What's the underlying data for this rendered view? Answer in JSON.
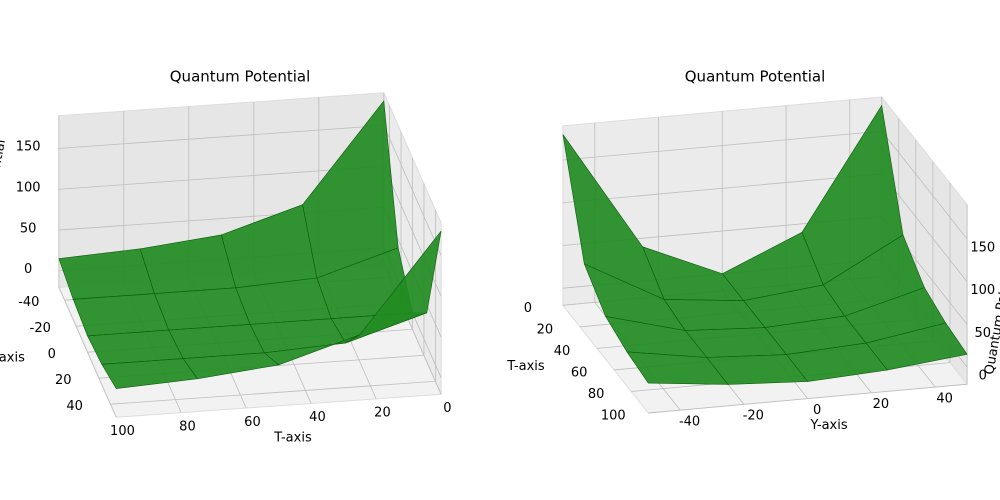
{
  "chart_data": [
    {
      "type": "surface3d",
      "title": "Quantum Potential",
      "xlabel": "T-axis",
      "ylabel": "Y-axis",
      "zlabel": "Quantum Potential",
      "color": "#228b22",
      "x": [
        0,
        25,
        50,
        75,
        100
      ],
      "y": [
        -50,
        -25,
        0,
        25,
        50
      ],
      "z": [
        [
          180,
          40,
          0,
          40,
          180
        ],
        [
          60,
          10,
          0,
          10,
          60
        ],
        [
          30,
          5,
          0,
          5,
          30
        ],
        [
          20,
          5,
          0,
          5,
          20
        ],
        [
          15,
          5,
          0,
          5,
          15
        ]
      ],
      "xlim": [
        0,
        100
      ],
      "ylim": [
        -50,
        50
      ],
      "zlim": [
        -20,
        190
      ],
      "xticks": [
        0,
        20,
        40,
        60,
        80,
        100
      ],
      "yticks": [
        -40,
        -20,
        0,
        20,
        40
      ],
      "zticks": [
        0,
        50,
        100,
        150
      ]
    },
    {
      "type": "surface3d",
      "title": "Quantum Potential",
      "xlabel": "T-axis",
      "ylabel": "Y-axis",
      "zlabel": "Quantum Potential",
      "color": "#228b22",
      "x": [
        0,
        25,
        50,
        75,
        100
      ],
      "y": [
        -50,
        -25,
        0,
        25,
        50
      ],
      "z": [
        [
          180,
          40,
          0,
          40,
          180
        ],
        [
          60,
          10,
          0,
          10,
          60
        ],
        [
          30,
          5,
          0,
          5,
          30
        ],
        [
          20,
          5,
          0,
          5,
          20
        ],
        [
          15,
          5,
          0,
          5,
          15
        ]
      ],
      "xlim": [
        0,
        100
      ],
      "ylim": [
        -50,
        50
      ],
      "zlim": [
        -20,
        190
      ],
      "xticks": [
        0,
        20,
        40,
        60,
        80,
        100
      ],
      "yticks": [
        -40,
        -20,
        0,
        20,
        40
      ],
      "zticks": [
        0,
        50,
        100,
        150
      ]
    }
  ]
}
